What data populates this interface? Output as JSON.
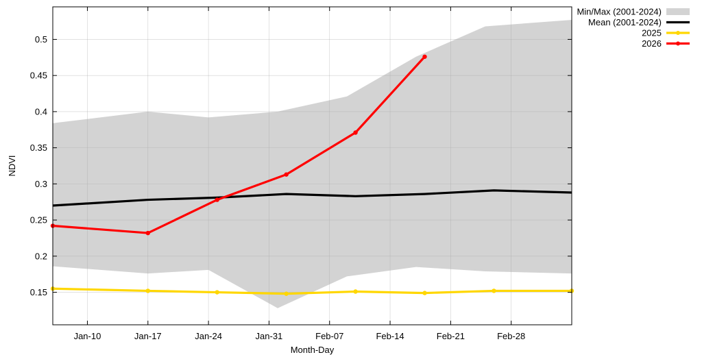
{
  "chart_data": {
    "type": "line",
    "xlabel": "Month-Day",
    "ylabel": "NDVI",
    "xlim": [
      "2026-01-06",
      "2026-03-07"
    ],
    "ylim": [
      0.105,
      0.545
    ],
    "grid": true,
    "legend_position": "top-right, outside plot",
    "x_ticks": [
      {
        "date": "2026-01-10",
        "label": "Jan-10"
      },
      {
        "date": "2026-01-17",
        "label": "Jan-17"
      },
      {
        "date": "2026-01-24",
        "label": "Jan-24"
      },
      {
        "date": "2026-01-31",
        "label": "Jan-31"
      },
      {
        "date": "2026-02-07",
        "label": "Feb-07"
      },
      {
        "date": "2026-02-14",
        "label": "Feb-14"
      },
      {
        "date": "2026-02-21",
        "label": "Feb-21"
      },
      {
        "date": "2026-02-28",
        "label": "Feb-28"
      }
    ],
    "y_ticks": [
      0.15,
      0.2,
      0.25,
      0.3,
      0.35,
      0.4,
      0.45,
      0.5
    ],
    "band": {
      "name": "Min/Max (2001-2024)",
      "color": "#d3d3d3",
      "x": [
        "2026-01-06",
        "2026-01-17",
        "2026-01-24",
        "2026-02-01",
        "2026-02-09",
        "2026-02-17",
        "2026-02-25",
        "2026-03-07"
      ],
      "min": [
        0.186,
        0.176,
        0.181,
        0.128,
        0.172,
        0.185,
        0.179,
        0.176
      ],
      "max": [
        0.384,
        0.4,
        0.392,
        0.4,
        0.421,
        0.476,
        0.518,
        0.527
      ]
    },
    "series": [
      {
        "name": "Mean (2001-2024)",
        "color": "#000000",
        "markers": false,
        "x": [
          "2026-01-06",
          "2026-01-17",
          "2026-01-25",
          "2026-02-02",
          "2026-02-10",
          "2026-02-18",
          "2026-02-26",
          "2026-03-07"
        ],
        "values": [
          0.27,
          0.278,
          0.281,
          0.286,
          0.283,
          0.286,
          0.291,
          0.288
        ]
      },
      {
        "name": "2025",
        "color": "#ffd700",
        "markers": true,
        "x": [
          "2026-01-06",
          "2026-01-17",
          "2026-01-25",
          "2026-02-02",
          "2026-02-10",
          "2026-02-18",
          "2026-02-26",
          "2026-03-07"
        ],
        "values": [
          0.155,
          0.152,
          0.15,
          0.148,
          0.151,
          0.149,
          0.152,
          0.152
        ]
      },
      {
        "name": "2026",
        "color": "#ff0000",
        "markers": true,
        "x": [
          "2026-01-06",
          "2026-01-17",
          "2026-01-25",
          "2026-02-02",
          "2026-02-10",
          "2026-02-18"
        ],
        "values": [
          0.242,
          0.232,
          0.278,
          0.313,
          0.371,
          0.476
        ]
      }
    ]
  }
}
